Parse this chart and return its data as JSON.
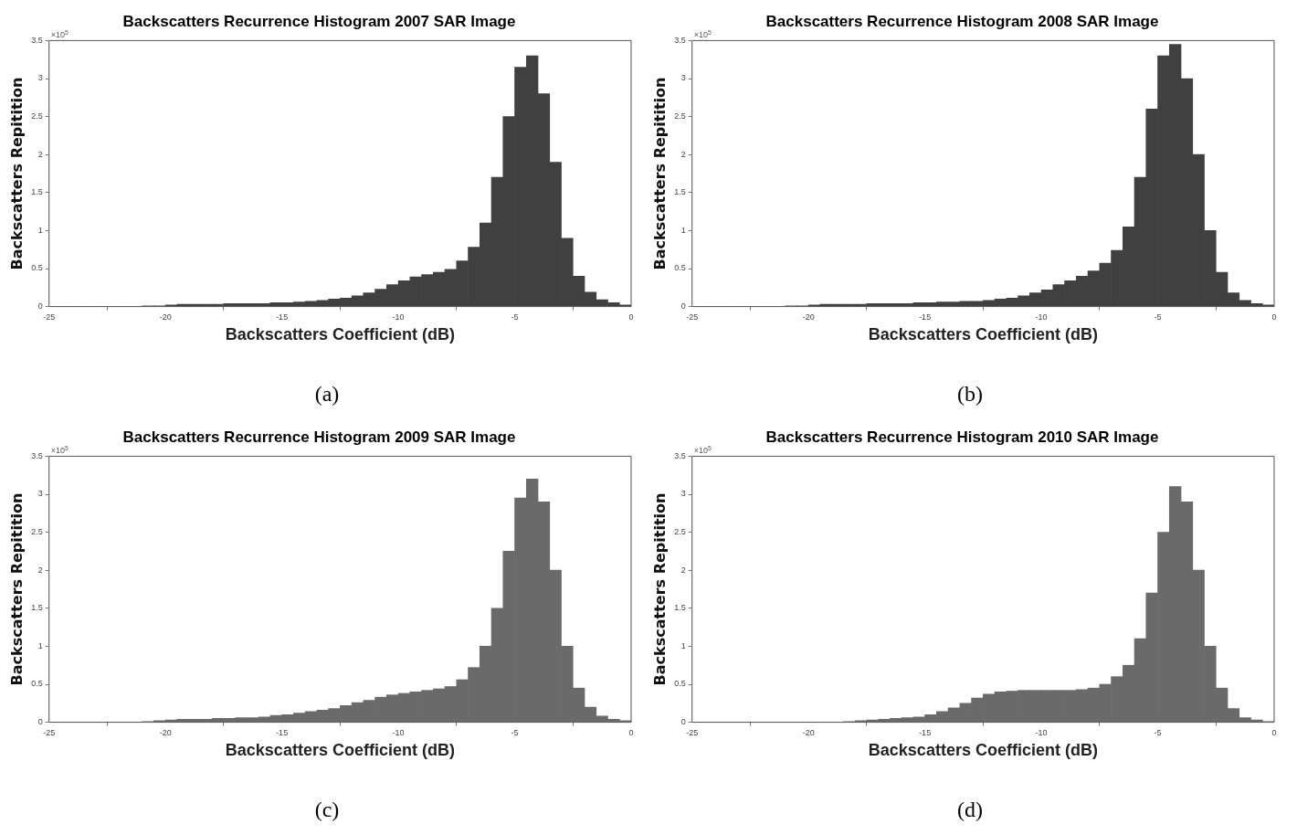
{
  "chart_data": [
    {
      "type": "histogram",
      "title": "Backscatters Recurrence Histogram 2007 SAR Image",
      "xlabel": "Backscatters Coefficient (dB)",
      "ylabel": "Backscatters Repitition",
      "color": "#404040",
      "xlim": [
        -25,
        0
      ],
      "xticks": [
        -25,
        -20,
        -15,
        -10,
        -5,
        0
      ],
      "ylim": [
        0,
        3.5
      ],
      "yticks": [
        0,
        0.5,
        1,
        1.5,
        2,
        2.5,
        3,
        3.5
      ],
      "annotations": [
        "×10$^{5}$",
        "(a)"
      ],
      "bins": [
        -25,
        -24.5,
        -24,
        -23.5,
        -23,
        -22.5,
        -22,
        -21.5,
        -21,
        -20.5,
        -20,
        -19.5,
        -19,
        -18.5,
        -18,
        -17.5,
        -17,
        -16.5,
        -16,
        -15.5,
        -15,
        -14.5,
        -14,
        -13.5,
        -13,
        -12.5,
        -12,
        -11.5,
        -11,
        -10.5,
        -10,
        -9.5,
        -9,
        -8.5,
        -8,
        -7.5,
        -7,
        -6.5,
        -6,
        -5.5,
        -5,
        -4.5,
        -4,
        -3.5,
        -3,
        -2.5,
        -2,
        -1.5,
        -1,
        -0.5,
        0
      ],
      "values": [
        0,
        0,
        0,
        0,
        0,
        0,
        0,
        0,
        0.01,
        0.01,
        0.02,
        0.03,
        0.03,
        0.03,
        0.03,
        0.04,
        0.04,
        0.04,
        0.04,
        0.05,
        0.05,
        0.06,
        0.07,
        0.08,
        0.1,
        0.11,
        0.14,
        0.18,
        0.23,
        0.29,
        0.34,
        0.39,
        0.42,
        0.45,
        0.49,
        0.6,
        0.78,
        1.1,
        1.7,
        2.5,
        3.15,
        3.3,
        2.8,
        1.9,
        0.9,
        0.4,
        0.19,
        0.09,
        0.05,
        0.02
      ]
    },
    {
      "type": "histogram",
      "title": "Backscatters Recurrence Histogram 2008 SAR Image",
      "xlabel": "Backscatters Coefficient (dB)",
      "ylabel": "Backscatters Repitition",
      "color": "#404040",
      "xlim": [
        -25,
        0
      ],
      "xticks": [
        -25,
        -20,
        -15,
        -10,
        -5,
        0
      ],
      "ylim": [
        0,
        3.5
      ],
      "yticks": [
        0,
        0.5,
        1,
        1.5,
        2,
        2.5,
        3,
        3.5
      ],
      "annotations": [
        "×10$^{5}$",
        "(b)"
      ],
      "bins": [
        -25,
        -24.5,
        -24,
        -23.5,
        -23,
        -22.5,
        -22,
        -21.5,
        -21,
        -20.5,
        -20,
        -19.5,
        -19,
        -18.5,
        -18,
        -17.5,
        -17,
        -16.5,
        -16,
        -15.5,
        -15,
        -14.5,
        -14,
        -13.5,
        -13,
        -12.5,
        -12,
        -11.5,
        -11,
        -10.5,
        -10,
        -9.5,
        -9,
        -8.5,
        -8,
        -7.5,
        -7,
        -6.5,
        -6,
        -5.5,
        -5,
        -4.5,
        -4,
        -3.5,
        -3,
        -2.5,
        -2,
        -1.5,
        -1,
        -0.5,
        0
      ],
      "values": [
        0,
        0,
        0,
        0,
        0,
        0,
        0,
        0,
        0.01,
        0.01,
        0.02,
        0.03,
        0.03,
        0.03,
        0.03,
        0.04,
        0.04,
        0.04,
        0.04,
        0.05,
        0.05,
        0.06,
        0.06,
        0.07,
        0.07,
        0.08,
        0.1,
        0.11,
        0.14,
        0.18,
        0.22,
        0.29,
        0.34,
        0.4,
        0.47,
        0.57,
        0.74,
        1.05,
        1.7,
        2.6,
        3.3,
        3.45,
        3,
        2,
        1,
        0.45,
        0.18,
        0.08,
        0.04,
        0.02
      ]
    },
    {
      "type": "histogram",
      "title": "Backscatters Recurrence Histogram 2009 SAR Image",
      "xlabel": "Backscatters Coefficient (dB)",
      "ylabel": "Backscatters Repitition",
      "color": "#6a6a6a",
      "xlim": [
        -25,
        0
      ],
      "xticks": [
        -25,
        -20,
        -15,
        -10,
        -5,
        0
      ],
      "ylim": [
        0,
        3.5
      ],
      "yticks": [
        0,
        0.5,
        1,
        1.5,
        2,
        2.5,
        3,
        3.5
      ],
      "annotations": [
        "×10$^{5}$",
        "(c)"
      ],
      "bins": [
        -25,
        -24.5,
        -24,
        -23.5,
        -23,
        -22.5,
        -22,
        -21.5,
        -21,
        -20.5,
        -20,
        -19.5,
        -19,
        -18.5,
        -18,
        -17.5,
        -17,
        -16.5,
        -16,
        -15.5,
        -15,
        -14.5,
        -14,
        -13.5,
        -13,
        -12.5,
        -12,
        -11.5,
        -11,
        -10.5,
        -10,
        -9.5,
        -9,
        -8.5,
        -8,
        -7.5,
        -7,
        -6.5,
        -6,
        -5.5,
        -5,
        -4.5,
        -4,
        -3.5,
        -3,
        -2.5,
        -2,
        -1.5,
        -1,
        -0.5,
        0
      ],
      "values": [
        0,
        0,
        0,
        0,
        0,
        0,
        0,
        0,
        0.01,
        0.02,
        0.03,
        0.04,
        0.04,
        0.04,
        0.05,
        0.05,
        0.06,
        0.06,
        0.07,
        0.09,
        0.1,
        0.12,
        0.14,
        0.16,
        0.18,
        0.22,
        0.26,
        0.29,
        0.33,
        0.36,
        0.38,
        0.4,
        0.42,
        0.44,
        0.47,
        0.56,
        0.72,
        1,
        1.5,
        2.25,
        2.95,
        3.2,
        2.9,
        2,
        1,
        0.45,
        0.2,
        0.08,
        0.04,
        0.02
      ]
    },
    {
      "type": "histogram",
      "title": "Backscatters Recurrence Histogram 2010 SAR Image",
      "xlabel": "Backscatters Coefficient (dB)",
      "ylabel": "Backscatters Repitition",
      "color": "#6a6a6a",
      "xlim": [
        -25,
        0
      ],
      "xticks": [
        -25,
        -20,
        -15,
        -10,
        -5,
        0
      ],
      "ylim": [
        0,
        3.5
      ],
      "yticks": [
        0,
        0.5,
        1,
        1.5,
        2,
        2.5,
        3,
        3.5
      ],
      "annotations": [
        "×10$^{5}$",
        "(d)"
      ],
      "bins": [
        -25,
        -24.5,
        -24,
        -23.5,
        -23,
        -22.5,
        -22,
        -21.5,
        -21,
        -20.5,
        -20,
        -19.5,
        -19,
        -18.5,
        -18,
        -17.5,
        -17,
        -16.5,
        -16,
        -15.5,
        -15,
        -14.5,
        -14,
        -13.5,
        -13,
        -12.5,
        -12,
        -11.5,
        -11,
        -10.5,
        -10,
        -9.5,
        -9,
        -8.5,
        -8,
        -7.5,
        -7,
        -6.5,
        -6,
        -5.5,
        -5,
        -4.5,
        -4,
        -3.5,
        -3,
        -2.5,
        -2,
        -1.5,
        -1,
        -0.5,
        0
      ],
      "values": [
        0,
        0,
        0,
        0,
        0,
        0,
        0,
        0,
        0,
        0,
        0,
        0,
        0,
        0.01,
        0.02,
        0.03,
        0.04,
        0.05,
        0.06,
        0.07,
        0.1,
        0.14,
        0.19,
        0.25,
        0.32,
        0.37,
        0.4,
        0.41,
        0.42,
        0.42,
        0.42,
        0.42,
        0.42,
        0.43,
        0.45,
        0.5,
        0.6,
        0.75,
        1.1,
        1.7,
        2.5,
        3.1,
        2.9,
        2,
        1,
        0.45,
        0.18,
        0.06,
        0.03,
        0.01
      ]
    }
  ]
}
